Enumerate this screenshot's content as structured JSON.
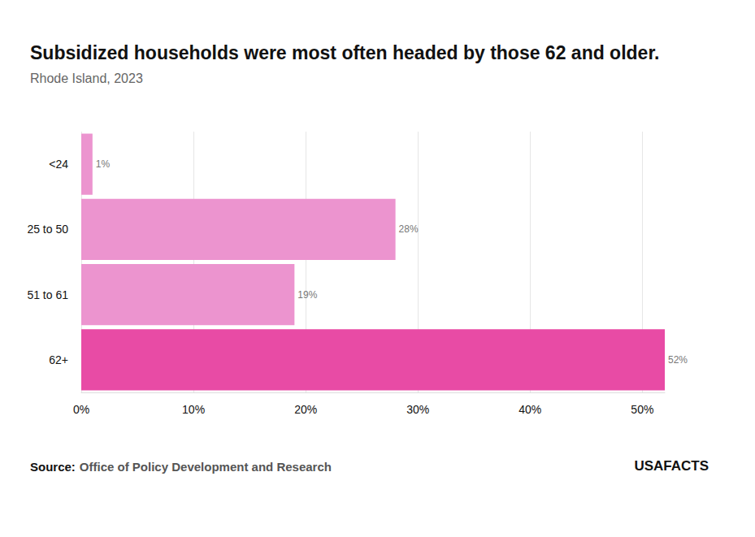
{
  "chart_data": {
    "type": "bar",
    "orientation": "horizontal",
    "title": "Subsidized households were most often headed by those 62 and older.",
    "subtitle": "Rhode Island, 2023",
    "categories": [
      "<24",
      "25 to 50",
      "51 to 61",
      "62+"
    ],
    "values": [
      1,
      28,
      19,
      52
    ],
    "value_labels": [
      "1%",
      "28%",
      "19%",
      "52%"
    ],
    "data_labels": true,
    "colors": [
      "#ec94cf",
      "#ec94cf",
      "#ec94cf",
      "#e84ba5"
    ],
    "xlim": [
      0,
      52
    ],
    "xticks": [
      {
        "value": 0,
        "label": "0%"
      },
      {
        "value": 10,
        "label": "10%"
      },
      {
        "value": 20,
        "label": "20%"
      },
      {
        "value": 30,
        "label": "30%"
      },
      {
        "value": 40,
        "label": "40%"
      },
      {
        "value": 50,
        "label": "50%"
      }
    ],
    "grid": true,
    "source_label": "Source:",
    "source": "Office of Policy Development and Research",
    "logo": [
      "USA",
      "FACTS"
    ]
  }
}
